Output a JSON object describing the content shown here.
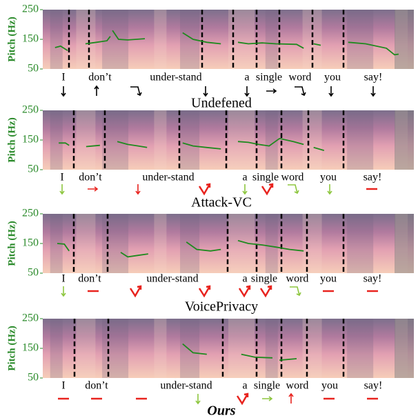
{
  "panels": [
    {
      "ylabel": "Pitch (Hz)",
      "ylim": [
        50,
        250
      ],
      "yticks": [
        50,
        150,
        250
      ],
      "caption": "Undefened",
      "words": [
        "I",
        "don’t",
        "under-stand",
        "a",
        "single",
        "word",
        "you",
        "say!"
      ],
      "pitch": [
        {
          "x": [
            0.033,
            0.048,
            0.067
          ],
          "values": [
            122,
            127,
            112
          ]
        },
        {
          "x": [
            0.115,
            0.145,
            0.173,
            0.182
          ],
          "values": [
            135,
            140,
            145,
            160
          ]
        },
        {
          "x": [
            0.188,
            0.204,
            0.229,
            0.275
          ],
          "values": [
            180,
            150,
            148,
            152
          ]
        },
        {
          "x": [
            0.377,
            0.405,
            0.442,
            0.48
          ],
          "values": [
            172,
            150,
            140,
            135
          ]
        },
        {
          "x": [
            0.526,
            0.554,
            0.591,
            0.628,
            0.684,
            0.703
          ],
          "values": [
            140,
            135,
            138,
            135,
            133,
            120
          ]
        },
        {
          "x": [
            0.73,
            0.749
          ],
          "values": [
            135,
            130
          ]
        },
        {
          "x": [
            0.823,
            0.87,
            0.926,
            0.948,
            0.959
          ],
          "values": [
            140,
            135,
            120,
            98,
            100
          ]
        }
      ],
      "arrows": [
        {
          "kind": "down",
          "color": "#000000"
        },
        {
          "kind": "up",
          "color": "#000000"
        },
        {
          "kind": "hook-down",
          "color": "#000000"
        },
        {
          "kind": "down",
          "color": "#000000"
        },
        {
          "kind": "down",
          "color": "#000000"
        },
        {
          "kind": "right",
          "color": "#000000"
        },
        {
          "kind": "hook-down",
          "color": "#000000"
        },
        {
          "kind": "down",
          "color": "#000000"
        },
        {
          "kind": "down",
          "color": "#000000"
        }
      ]
    },
    {
      "ylabel": "Pitch (Hz)",
      "ylim": [
        50,
        250
      ],
      "yticks": [
        50,
        150,
        250
      ],
      "caption": "Attack-VC",
      "words": [
        "I",
        "don’t",
        "under-stand",
        "a",
        "single",
        "word",
        "you",
        "say!"
      ],
      "pitch": [
        {
          "x": [
            0.043,
            0.061,
            0.071
          ],
          "values": [
            140,
            140,
            132
          ]
        },
        {
          "x": [
            0.117,
            0.154
          ],
          "values": [
            128,
            132
          ]
        },
        {
          "x": [
            0.201,
            0.229,
            0.257,
            0.281
          ],
          "values": [
            145,
            135,
            130,
            125
          ]
        },
        {
          "x": [
            0.377,
            0.405,
            0.442,
            0.48
          ],
          "values": [
            140,
            130,
            125,
            120
          ]
        },
        {
          "x": [
            0.526,
            0.554,
            0.582,
            0.61,
            0.638,
            0.675,
            0.703
          ],
          "values": [
            145,
            142,
            135,
            130,
            155,
            145,
            135
          ]
        },
        {
          "x": [
            0.73,
            0.758
          ],
          "values": [
            125,
            115
          ]
        }
      ],
      "arrows": [
        {
          "kind": "down",
          "color": "#8dc63f"
        },
        {
          "kind": "right",
          "color": "#e8231e"
        },
        {
          "kind": "down",
          "color": "#e8231e"
        },
        {
          "kind": "vee-up",
          "color": "#e8231e"
        },
        {
          "kind": "down",
          "color": "#8dc63f"
        },
        {
          "kind": "vee-up",
          "color": "#e8231e"
        },
        {
          "kind": "hook-down",
          "color": "#8dc63f"
        },
        {
          "kind": "down",
          "color": "#8dc63f"
        },
        {
          "kind": "flat",
          "color": "#e8231e"
        }
      ]
    },
    {
      "ylabel": "Pitch (Hz)",
      "ylim": [
        50,
        250
      ],
      "yticks": [
        50,
        150,
        250
      ],
      "caption": "VoicePrivacy",
      "words": [
        "I",
        "don’t",
        "under-stand",
        "a",
        "single",
        "word",
        "you",
        "say!"
      ],
      "pitch": [
        {
          "x": [
            0.039,
            0.058,
            0.071
          ],
          "values": [
            150,
            148,
            125
          ]
        },
        {
          "x": [
            0.21,
            0.229,
            0.257,
            0.284
          ],
          "values": [
            120,
            105,
            110,
            115
          ]
        },
        {
          "x": [
            0.387,
            0.415,
            0.452,
            0.48
          ],
          "values": [
            155,
            130,
            125,
            130
          ]
        },
        {
          "x": [
            0.526,
            0.554,
            0.591,
            0.628,
            0.665,
            0.703
          ],
          "values": [
            160,
            150,
            145,
            138,
            130,
            125
          ]
        }
      ],
      "arrows": [
        {
          "kind": "down",
          "color": "#8dc63f"
        },
        {
          "kind": "flat",
          "color": "#e8231e"
        },
        {
          "kind": "vee-up",
          "color": "#e8231e"
        },
        {
          "kind": "vee-up",
          "color": "#e8231e"
        },
        {
          "kind": "vee-up",
          "color": "#e8231e"
        },
        {
          "kind": "vee-up",
          "color": "#e8231e"
        },
        {
          "kind": "hook-down",
          "color": "#8dc63f"
        },
        {
          "kind": "flat",
          "color": "#e8231e"
        },
        {
          "kind": "flat",
          "color": "#e8231e"
        }
      ]
    },
    {
      "ylabel": "Pitch (Hz)",
      "ylim": [
        50,
        250
      ],
      "yticks": [
        50,
        150,
        250
      ],
      "caption": "Ours",
      "words": [
        "I",
        "don’t",
        "under-stand",
        "a",
        "single",
        "word",
        "you",
        "say!"
      ],
      "pitch": [
        {
          "x": [
            0.377,
            0.405,
            0.442
          ],
          "values": [
            165,
            135,
            130
          ]
        },
        {
          "x": [
            0.535,
            0.572,
            0.619
          ],
          "values": [
            130,
            120,
            118
          ]
        },
        {
          "x": [
            0.638,
            0.684
          ],
          "values": [
            110,
            115
          ]
        }
      ],
      "arrows": [
        {
          "kind": "flat",
          "color": "#e8231e"
        },
        {
          "kind": "flat",
          "color": "#e8231e"
        },
        {
          "kind": "flat",
          "color": "#e8231e"
        },
        {
          "kind": "down",
          "color": "#8dc63f"
        },
        {
          "kind": "vee-up",
          "color": "#e8231e"
        },
        {
          "kind": "right",
          "color": "#8dc63f"
        },
        {
          "kind": "up",
          "color": "#e8231e"
        },
        {
          "kind": "flat",
          "color": "#e8231e"
        },
        {
          "kind": "flat",
          "color": "#e8231e"
        }
      ]
    }
  ]
}
